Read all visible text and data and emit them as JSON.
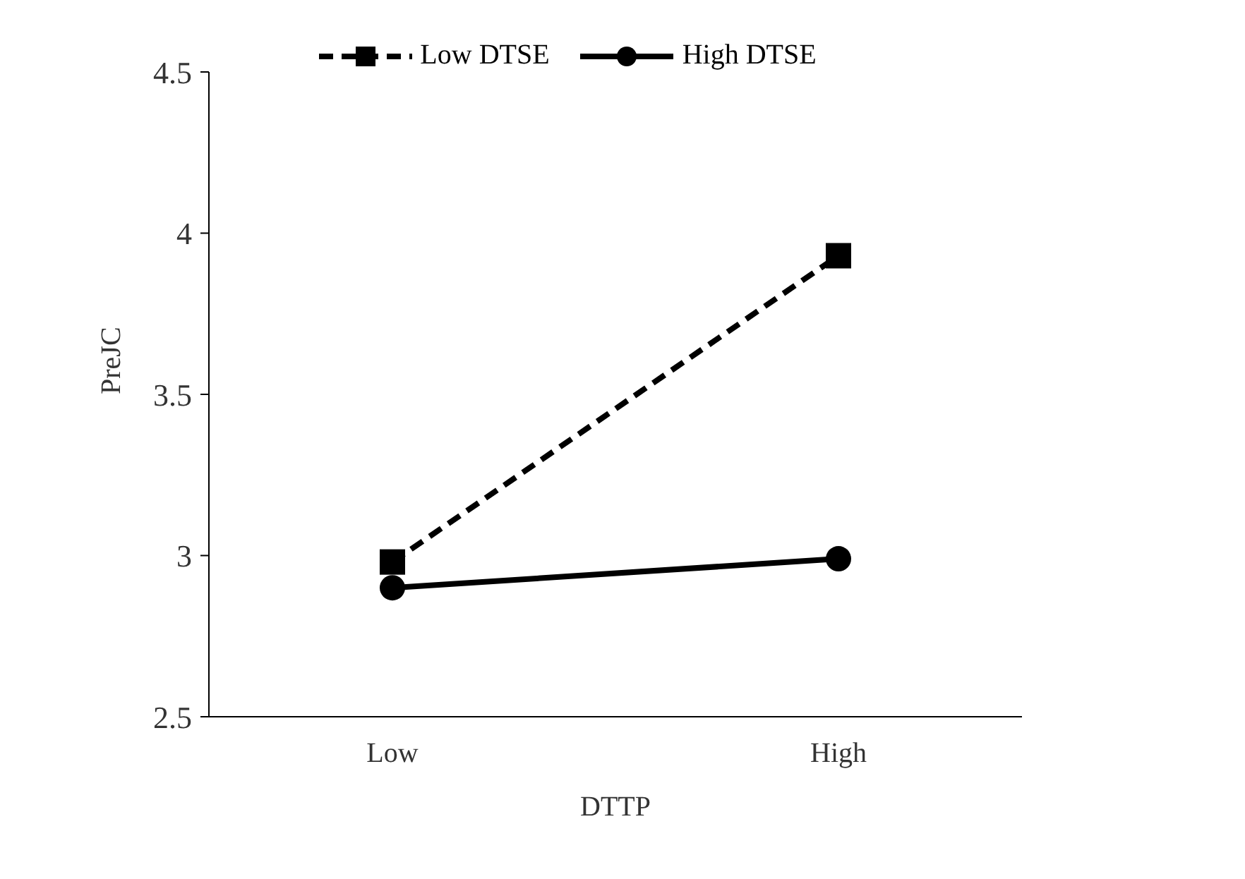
{
  "chart_data": {
    "type": "line",
    "xlabel": "DTTP",
    "ylabel": "PreJC",
    "categories": [
      "Low",
      "High"
    ],
    "series": [
      {
        "name": "Low DTSE",
        "color": "#000000",
        "values": [
          2.98,
          3.93
        ],
        "marker": "square",
        "line_style": "dashed"
      },
      {
        "name": "High DTSE",
        "color": "#000000",
        "values": [
          2.9,
          2.99
        ],
        "marker": "circle",
        "line_style": "solid"
      }
    ],
    "ylim": [
      2.5,
      4.5
    ],
    "yticks": [
      2.5,
      3,
      3.5,
      4,
      4.5
    ],
    "grid": false,
    "legend": "top"
  }
}
